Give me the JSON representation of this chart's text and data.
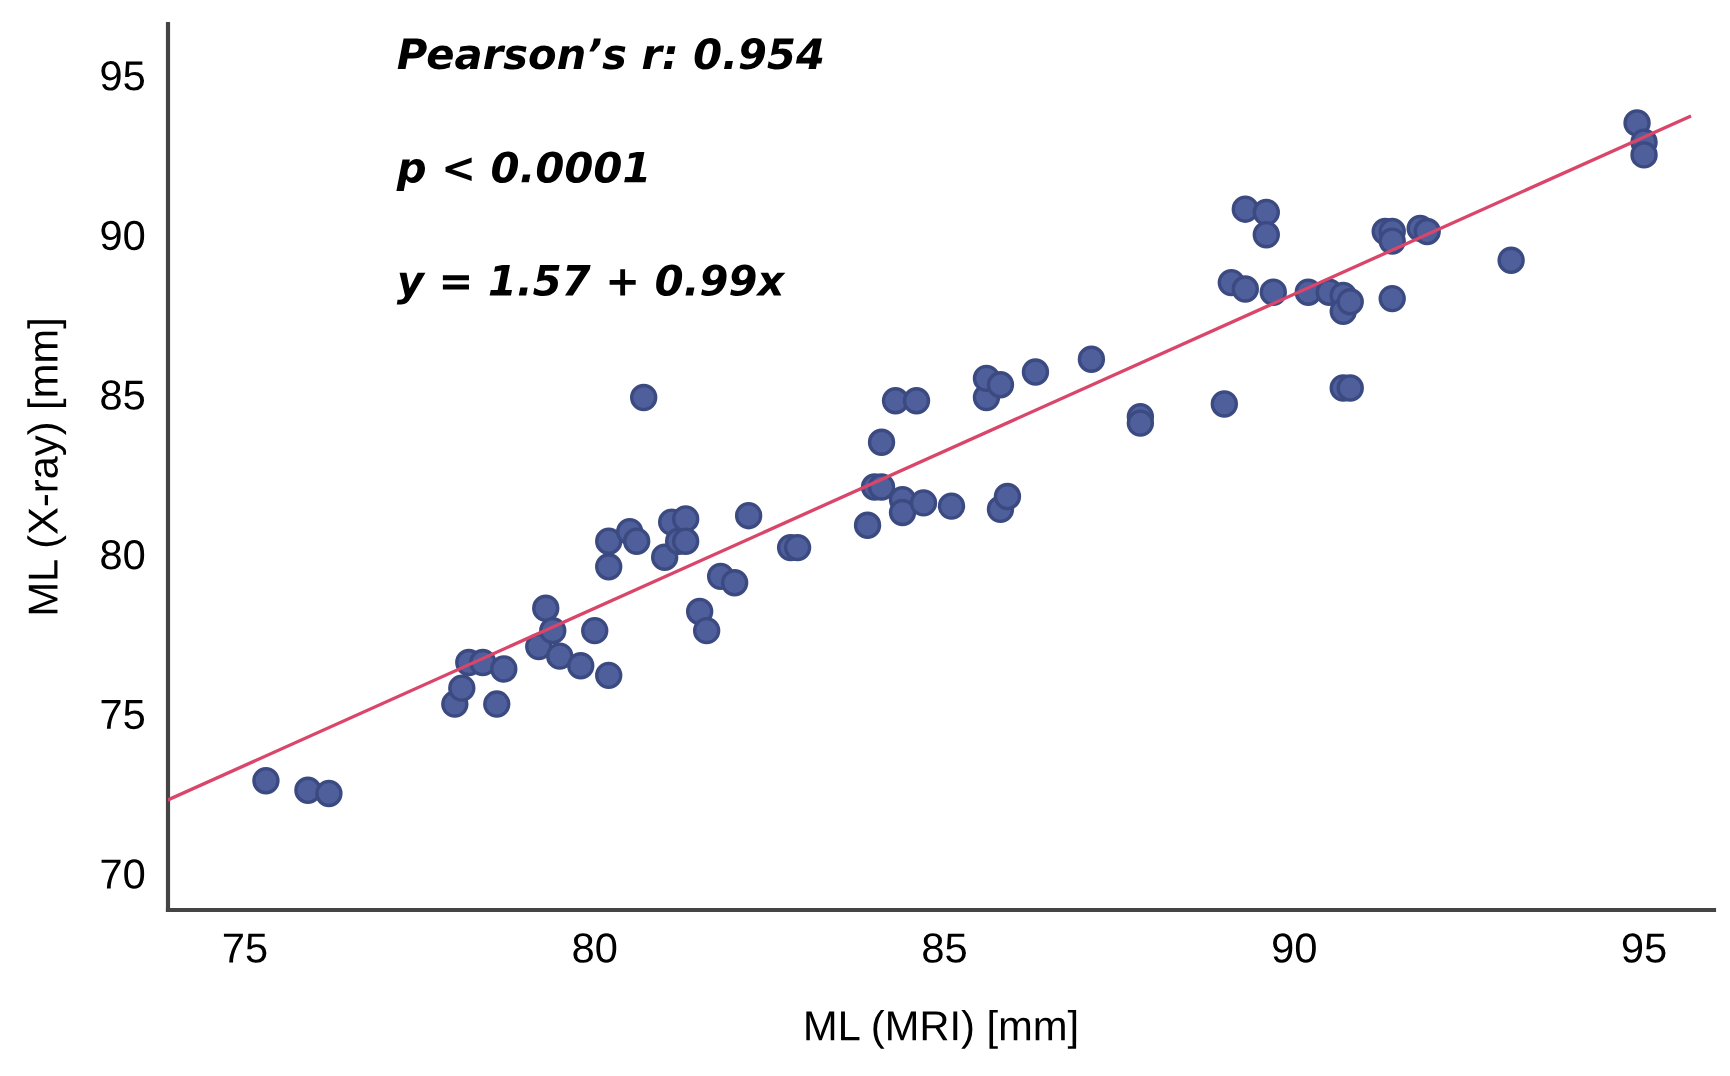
{
  "chart_data": {
    "type": "scatter",
    "xlabel": "ML (MRI) [mm]",
    "ylabel": "ML (X-ray) [mm]",
    "annotations": [
      "Pearson’s r: 0.954",
      "p < 0.0001",
      "y = 1.57 + 0.99x"
    ],
    "xlim": [
      73.9,
      96.0
    ],
    "ylim": [
      68.85,
      96.6
    ],
    "xticks": [
      75,
      80,
      85,
      90,
      95
    ],
    "yticks": [
      70,
      75,
      80,
      85,
      90,
      95
    ],
    "grid": false,
    "legend": false,
    "marker": "circle",
    "series": [
      {
        "color": "#4f5f9c",
        "x": [
          75.3,
          75.9,
          76.2,
          78.0,
          78.1,
          78.2,
          78.4,
          78.6,
          78.7,
          79.2,
          79.3,
          79.4,
          79.5,
          79.8,
          80.0,
          80.2,
          80.2,
          80.2,
          80.5,
          80.6,
          80.7,
          81.0,
          81.1,
          81.2,
          81.3,
          81.3,
          81.5,
          81.6,
          81.8,
          82.0,
          82.2,
          82.8,
          82.9,
          83.9,
          84.0,
          84.1,
          84.1,
          84.3,
          84.4,
          84.4,
          84.6,
          84.7,
          85.1,
          85.6,
          85.6,
          85.8,
          85.8,
          85.9,
          86.3,
          87.1,
          87.8,
          87.8,
          89.0,
          89.1,
          89.3,
          89.3,
          89.6,
          89.6,
          89.7,
          90.2,
          90.5,
          90.7,
          90.7,
          90.8,
          90.7,
          90.8,
          91.3,
          91.4,
          91.4,
          91.4,
          91.8,
          91.9,
          93.1,
          94.9,
          95.0,
          95.0
        ],
        "values": [
          72.9,
          72.6,
          72.5,
          75.3,
          75.8,
          76.6,
          76.6,
          75.3,
          76.4,
          77.1,
          78.3,
          77.6,
          76.8,
          76.5,
          77.6,
          76.2,
          79.6,
          80.4,
          80.7,
          80.4,
          84.9,
          79.9,
          81.0,
          80.4,
          81.1,
          80.4,
          78.2,
          77.6,
          79.3,
          79.1,
          81.2,
          80.2,
          80.2,
          80.9,
          82.1,
          82.1,
          83.5,
          84.8,
          81.7,
          81.3,
          84.8,
          81.6,
          81.5,
          84.9,
          85.5,
          85.3,
          81.4,
          81.8,
          85.7,
          86.1,
          84.3,
          84.1,
          84.7,
          88.5,
          88.3,
          90.8,
          90.7,
          90.0,
          88.2,
          88.2,
          88.2,
          88.1,
          87.6,
          87.9,
          85.2,
          85.2,
          90.1,
          90.1,
          89.8,
          88.0,
          90.2,
          90.1,
          89.2,
          93.5,
          92.9,
          92.5
        ]
      },
      {
        "type": "line",
        "color": "#d9466a",
        "line_style": "solid",
        "marker": "none",
        "x": [
          73.9,
          95.65
        ],
        "values": [
          72.3,
          93.7
        ]
      }
    ]
  }
}
